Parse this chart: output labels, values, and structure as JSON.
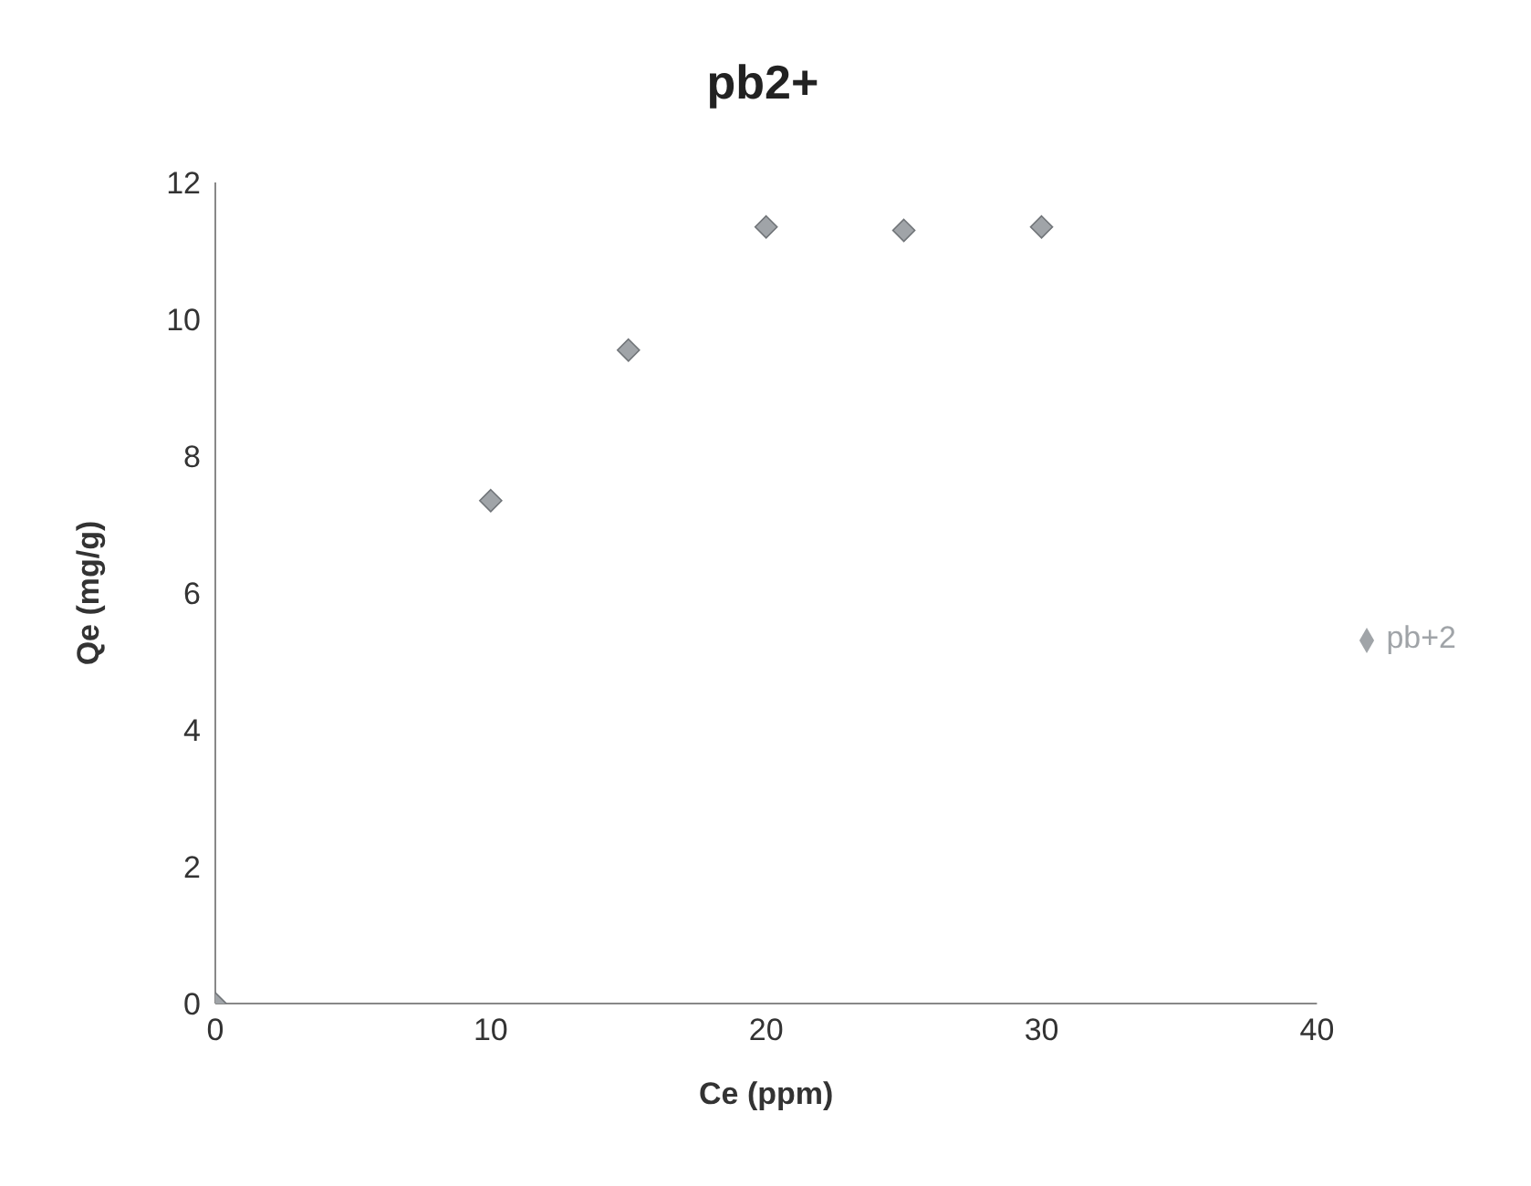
{
  "chart_data": {
    "type": "scatter",
    "title": "pb2+",
    "xlabel": "Ce (ppm)",
    "ylabel": "Qe (mg/g)",
    "x": [
      0,
      10,
      15,
      20,
      25,
      30
    ],
    "series": [
      {
        "name": "pb+2",
        "color": "#a0a4a8",
        "values": [
          0,
          7.35,
          9.55,
          11.35,
          11.3,
          11.35
        ]
      }
    ],
    "xlim": [
      0,
      40
    ],
    "xticks": [
      0,
      10,
      20,
      30,
      40
    ],
    "ylim": [
      0,
      12
    ],
    "yticks": [
      0,
      2,
      4,
      6,
      8,
      10,
      12
    ],
    "grid": false,
    "legend": "right",
    "marker": "diamond"
  }
}
